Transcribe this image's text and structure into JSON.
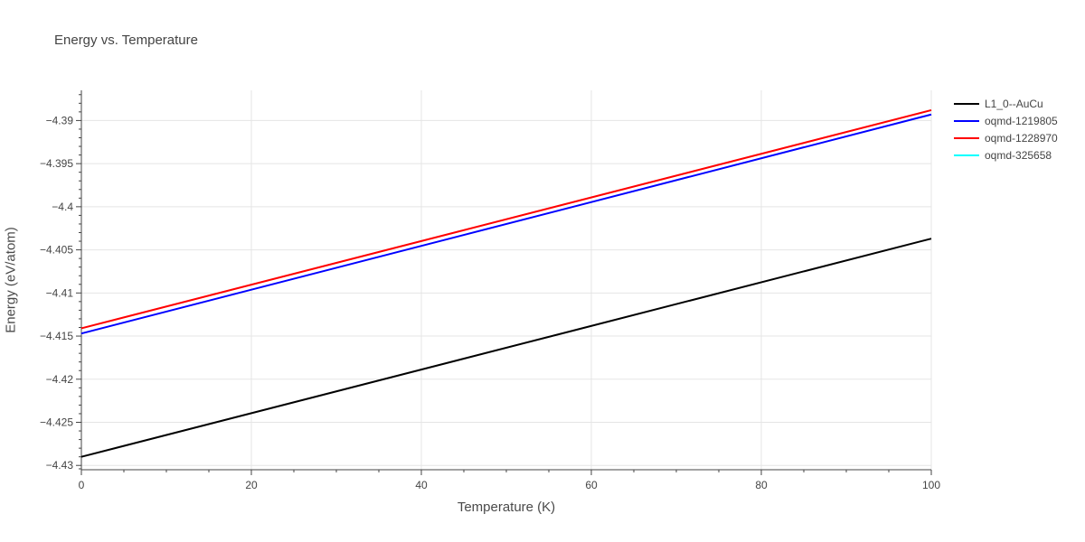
{
  "chart_data": {
    "type": "line",
    "title": "Energy vs. Temperature",
    "xlabel": "Temperature (K)",
    "ylabel": "Energy (eV/atom)",
    "xlim": [
      0,
      100
    ],
    "ylim": [
      -4.4305,
      -4.3865
    ],
    "x_ticks": [
      0,
      20,
      40,
      60,
      80,
      100
    ],
    "x_tick_labels": [
      "0",
      "20",
      "40",
      "60",
      "80",
      "100"
    ],
    "y_ticks": [
      -4.39,
      -4.395,
      -4.4,
      -4.405,
      -4.41,
      -4.415,
      -4.42,
      -4.425,
      -4.43
    ],
    "y_tick_labels": [
      "−4.39",
      "−4.395",
      "−4.4",
      "−4.405",
      "−4.41",
      "−4.415",
      "−4.42",
      "−4.425",
      "−4.43"
    ],
    "grid": true,
    "legend_position": "top-right",
    "series": [
      {
        "name": "L1_0--AuCu",
        "color": "#000000",
        "x": [
          0,
          100
        ],
        "y": [
          -4.429,
          -4.4037
        ]
      },
      {
        "name": "oqmd-1219805",
        "color": "#0000ff",
        "x": [
          0,
          100
        ],
        "y": [
          -4.4147,
          -4.3893
        ]
      },
      {
        "name": "oqmd-1228970",
        "color": "#ff0000",
        "x": [
          0,
          100
        ],
        "y": [
          -4.4141,
          -4.3888
        ]
      },
      {
        "name": "oqmd-325658",
        "color": "#00ffff",
        "x": [],
        "y": []
      }
    ]
  }
}
